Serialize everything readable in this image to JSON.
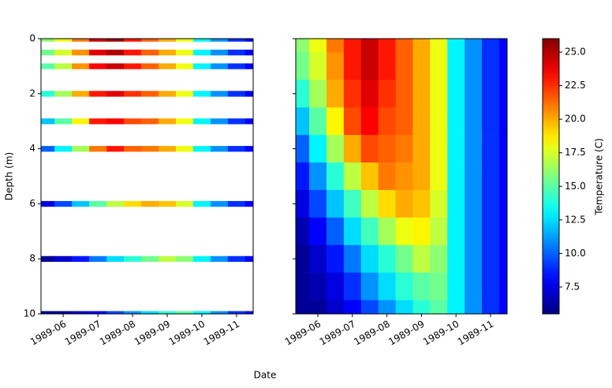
{
  "xlabel": "Date",
  "colorbar": {
    "label": "Temperature (C)",
    "colormap": "jet",
    "clim": [
      5.5,
      26
    ],
    "ticks": [
      7.5,
      {
        "value": 10,
        "label": "10.0"
      },
      12.5,
      {
        "value": 15,
        "label": "15.0"
      },
      17.5,
      {
        "value": 20,
        "label": "20.0"
      },
      22.5,
      {
        "value": 25,
        "label": "25.0"
      }
    ]
  },
  "chart_data": [
    {
      "type": "strips",
      "ylabel": "Depth (m)",
      "xlim": [
        -0.64,
        5.48
      ],
      "ylim": [
        10,
        0
      ],
      "yticks": [
        0,
        2,
        4,
        6,
        8,
        10
      ],
      "xticks": [
        {
          "value": 0,
          "label": "1989-06"
        },
        {
          "value": 1,
          "label": "1989-07"
        },
        {
          "value": 2,
          "label": "1989-08"
        },
        {
          "value": 3,
          "label": "1989-09"
        },
        {
          "value": 4,
          "label": "1989-10"
        },
        {
          "value": 5,
          "label": "1989-11"
        }
      ],
      "x": [
        -0.5,
        0,
        0.5,
        1,
        1.5,
        2,
        2.5,
        3,
        3.5,
        4,
        4.5,
        5,
        5.5
      ],
      "y": [
        0,
        0.5,
        1,
        2,
        3,
        4,
        6,
        8,
        10
      ],
      "values": [
        [
          16,
          18,
          21,
          24.5,
          25.5,
          23,
          21.5,
          20,
          18,
          13,
          11,
          9,
          8
        ],
        [
          15.5,
          17.5,
          20.5,
          24,
          25,
          23,
          21.5,
          20,
          18,
          13,
          11,
          9,
          8
        ],
        [
          15,
          17,
          20.5,
          23.5,
          24.5,
          23,
          21.5,
          20,
          18,
          13,
          11,
          9,
          8
        ],
        [
          14,
          16.5,
          20,
          23,
          24,
          22.5,
          21.5,
          20,
          18,
          13,
          11,
          9,
          8
        ],
        [
          12,
          15,
          18.5,
          23,
          23.5,
          22,
          21.5,
          20,
          18,
          13,
          11,
          9,
          8
        ],
        [
          10,
          13,
          16.5,
          21,
          23,
          21.5,
          21,
          20,
          18,
          13,
          11,
          9,
          8
        ],
        [
          7.5,
          9.5,
          12,
          15,
          17,
          19,
          20,
          19.5,
          17.5,
          13,
          11,
          9,
          8
        ],
        [
          6,
          7,
          8.5,
          10.5,
          12.5,
          14,
          15.5,
          17,
          16,
          13,
          11,
          9,
          8
        ],
        [
          6,
          6,
          7,
          8,
          9.5,
          11,
          12.5,
          14,
          15,
          13,
          11,
          9,
          8
        ]
      ]
    },
    {
      "type": "heatmap",
      "xlim": [
        -0.64,
        5.48
      ],
      "ylim": [
        10,
        0
      ],
      "yticks": [
        0,
        2,
        4,
        6,
        8,
        10
      ],
      "xticks": [
        {
          "value": 0,
          "label": "1989-06"
        },
        {
          "value": 1,
          "label": "1989-07"
        },
        {
          "value": 2,
          "label": "1989-08"
        },
        {
          "value": 3,
          "label": "1989-09"
        },
        {
          "value": 4,
          "label": "1989-10"
        },
        {
          "value": 5,
          "label": "1989-11"
        }
      ],
      "x": [
        -0.5,
        0,
        0.5,
        1,
        1.5,
        2,
        2.5,
        3,
        3.5,
        4,
        4.5,
        5,
        5.5
      ],
      "y": [
        0,
        1,
        2,
        3,
        4,
        5,
        6,
        7,
        8,
        9,
        10
      ],
      "values": [
        [
          16,
          18,
          21,
          23,
          24.5,
          23,
          21.5,
          20,
          18,
          13,
          11,
          9,
          8
        ],
        [
          15.5,
          17.5,
          20.5,
          23,
          24.5,
          23,
          21.5,
          20,
          18,
          13,
          11,
          9,
          8
        ],
        [
          14,
          16.5,
          20,
          22.5,
          24,
          22.5,
          21.5,
          20,
          18,
          13,
          11,
          9,
          8
        ],
        [
          12,
          15,
          18.5,
          22,
          23.5,
          22,
          21.5,
          20,
          18,
          13,
          11,
          9,
          8
        ],
        [
          10,
          13,
          16.5,
          20,
          22,
          21.5,
          21,
          20,
          18,
          13,
          11,
          9,
          8
        ],
        [
          8.5,
          11,
          14,
          17,
          19.5,
          21,
          20.5,
          20,
          18,
          13,
          11,
          9,
          8
        ],
        [
          7.5,
          9.5,
          12,
          14.5,
          17,
          19,
          20,
          19.5,
          17.5,
          13,
          11,
          9,
          8
        ],
        [
          6.5,
          8,
          10,
          12.5,
          14.5,
          16.5,
          18,
          18.5,
          17,
          13,
          11,
          9,
          8
        ],
        [
          6,
          7,
          8.5,
          10.5,
          12.5,
          14,
          15.5,
          17,
          16,
          13,
          11,
          9,
          8
        ],
        [
          6,
          6.5,
          7.5,
          9,
          11,
          12.5,
          14,
          15,
          15.5,
          13,
          11,
          9,
          8
        ],
        [
          6,
          6,
          7,
          8,
          9.5,
          11,
          12.5,
          14,
          15,
          13,
          11,
          9,
          8
        ]
      ]
    }
  ]
}
